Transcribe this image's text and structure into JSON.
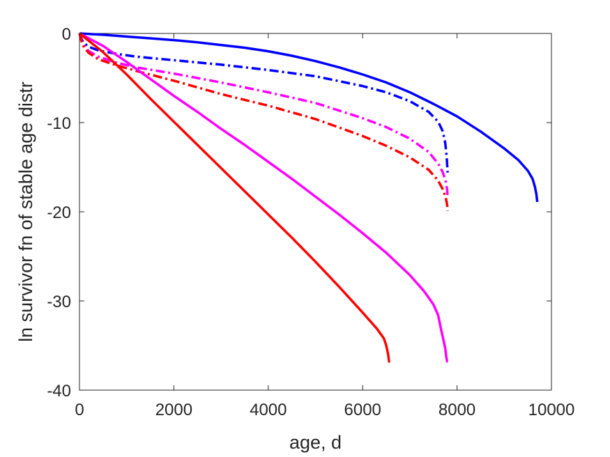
{
  "chart_data": {
    "type": "line",
    "title": "",
    "xlabel": "age, d",
    "ylabel": "ln survivor fn of stable age distr",
    "xlim": [
      0,
      10000
    ],
    "ylim": [
      -40,
      0
    ],
    "xticks": [
      0,
      2000,
      4000,
      6000,
      8000,
      10000
    ],
    "yticks": [
      0,
      -10,
      -20,
      -30,
      -40
    ],
    "xtick_labels": [
      "0",
      "2000",
      "4000",
      "6000",
      "8000",
      "10000"
    ],
    "ytick_labels": [
      "0",
      "-10",
      "-20",
      "-30",
      "-40"
    ],
    "grid": false,
    "legend": "none",
    "series": [
      {
        "color": "#0000ff",
        "style": "solid",
        "points": [
          [
            0,
            0
          ],
          [
            500,
            -0.15
          ],
          [
            1000,
            -0.35
          ],
          [
            1500,
            -0.55
          ],
          [
            2000,
            -0.75
          ],
          [
            2500,
            -1.0
          ],
          [
            3000,
            -1.3
          ],
          [
            3500,
            -1.6
          ],
          [
            4000,
            -2.0
          ],
          [
            4500,
            -2.5
          ],
          [
            5000,
            -3.1
          ],
          [
            5500,
            -3.8
          ],
          [
            6000,
            -4.6
          ],
          [
            6500,
            -5.5
          ],
          [
            7000,
            -6.6
          ],
          [
            7500,
            -7.9
          ],
          [
            8000,
            -9.3
          ],
          [
            8500,
            -11.0
          ],
          [
            9000,
            -12.9
          ],
          [
            9300,
            -14.2
          ],
          [
            9500,
            -15.4
          ],
          [
            9600,
            -16.3
          ],
          [
            9650,
            -17.2
          ],
          [
            9680,
            -18.0
          ],
          [
            9700,
            -18.9
          ]
        ]
      },
      {
        "color": "#0000ff",
        "style": "dashdot",
        "points": [
          [
            0,
            0
          ],
          [
            50,
            -0.7
          ],
          [
            100,
            -1.1
          ],
          [
            200,
            -1.5
          ],
          [
            400,
            -1.9
          ],
          [
            800,
            -2.3
          ],
          [
            1200,
            -2.6
          ],
          [
            2000,
            -3.0
          ],
          [
            3000,
            -3.5
          ],
          [
            4000,
            -4.1
          ],
          [
            5000,
            -4.8
          ],
          [
            6000,
            -5.9
          ],
          [
            6500,
            -6.6
          ],
          [
            7000,
            -7.6
          ],
          [
            7400,
            -8.8
          ],
          [
            7600,
            -9.9
          ],
          [
            7700,
            -11.0
          ],
          [
            7750,
            -12.3
          ],
          [
            7780,
            -13.8
          ],
          [
            7800,
            -15.6
          ]
        ]
      },
      {
        "color": "#ff00ff",
        "style": "dashdot",
        "points": [
          [
            0,
            0
          ],
          [
            50,
            -0.9
          ],
          [
            100,
            -1.4
          ],
          [
            200,
            -2.0
          ],
          [
            400,
            -2.6
          ],
          [
            800,
            -3.3
          ],
          [
            1200,
            -3.8
          ],
          [
            2000,
            -4.5
          ],
          [
            3000,
            -5.5
          ],
          [
            4000,
            -6.6
          ],
          [
            5000,
            -7.8
          ],
          [
            6000,
            -9.5
          ],
          [
            6500,
            -10.5
          ],
          [
            7000,
            -11.8
          ],
          [
            7400,
            -13.3
          ],
          [
            7600,
            -14.6
          ],
          [
            7700,
            -15.6
          ],
          [
            7760,
            -16.6
          ],
          [
            7790,
            -17.5
          ],
          [
            7800,
            -18.5
          ]
        ]
      },
      {
        "color": "#ff0000",
        "style": "dashdot",
        "points": [
          [
            0,
            0
          ],
          [
            50,
            -1.0
          ],
          [
            100,
            -1.6
          ],
          [
            200,
            -2.2
          ],
          [
            400,
            -2.9
          ],
          [
            800,
            -3.6
          ],
          [
            1200,
            -4.2
          ],
          [
            2000,
            -5.3
          ],
          [
            3000,
            -6.8
          ],
          [
            4000,
            -8.1
          ],
          [
            5000,
            -9.6
          ],
          [
            6000,
            -11.5
          ],
          [
            6500,
            -12.6
          ],
          [
            7000,
            -13.9
          ],
          [
            7400,
            -15.3
          ],
          [
            7600,
            -16.5
          ],
          [
            7700,
            -17.5
          ],
          [
            7760,
            -18.4
          ],
          [
            7790,
            -19.2
          ],
          [
            7800,
            -19.9
          ]
        ]
      },
      {
        "color": "#ff00ff",
        "style": "solid",
        "points": [
          [
            0,
            0
          ],
          [
            500,
            -1.4
          ],
          [
            1000,
            -3.2
          ],
          [
            1500,
            -5.1
          ],
          [
            2000,
            -7.0
          ],
          [
            2500,
            -8.8
          ],
          [
            3000,
            -10.7
          ],
          [
            3500,
            -12.5
          ],
          [
            4000,
            -14.4
          ],
          [
            4500,
            -16.3
          ],
          [
            5000,
            -18.3
          ],
          [
            5500,
            -20.3
          ],
          [
            6000,
            -22.4
          ],
          [
            6500,
            -24.6
          ],
          [
            7000,
            -27.1
          ],
          [
            7300,
            -28.9
          ],
          [
            7500,
            -30.4
          ],
          [
            7600,
            -31.6
          ],
          [
            7650,
            -32.9
          ],
          [
            7700,
            -34.1
          ],
          [
            7750,
            -35.3
          ],
          [
            7770,
            -36.2
          ],
          [
            7790,
            -36.8
          ],
          [
            7800,
            -36.8
          ]
        ]
      },
      {
        "color": "#ff0000",
        "style": "solid",
        "points": [
          [
            0,
            0
          ],
          [
            500,
            -2.1
          ],
          [
            1000,
            -4.6
          ],
          [
            1500,
            -7.3
          ],
          [
            2000,
            -9.9
          ],
          [
            2500,
            -12.5
          ],
          [
            3000,
            -15.1
          ],
          [
            3500,
            -17.7
          ],
          [
            4000,
            -20.3
          ],
          [
            4500,
            -22.9
          ],
          [
            5000,
            -25.6
          ],
          [
            5500,
            -28.4
          ],
          [
            6000,
            -31.3
          ],
          [
            6300,
            -33.1
          ],
          [
            6450,
            -34.2
          ],
          [
            6500,
            -35.0
          ],
          [
            6540,
            -36.0
          ],
          [
            6560,
            -36.8
          ],
          [
            6580,
            -36.8
          ]
        ]
      }
    ]
  }
}
